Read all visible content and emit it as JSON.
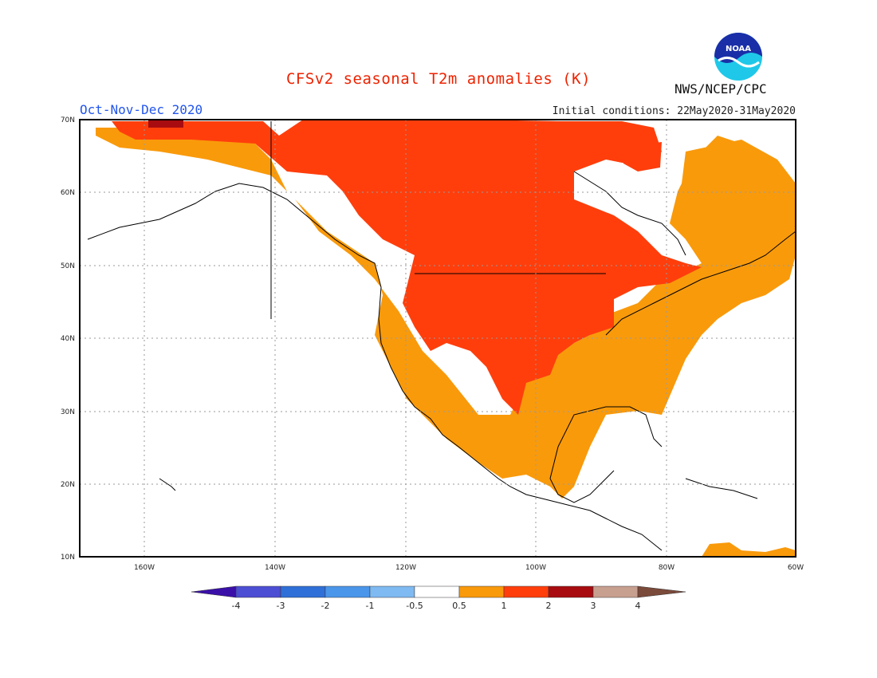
{
  "header": {
    "title": "CFSv2 seasonal T2m anomalies (K)",
    "season": "Oct-Nov-Dec 2020",
    "initial_conditions": "Initial conditions: 22May2020-31May2020",
    "agency": "NWS/NCEP/CPC",
    "logo_text": "NOAA"
  },
  "map": {
    "lat_labels": [
      "70N",
      "60N",
      "50N",
      "40N",
      "30N",
      "20N",
      "10N"
    ],
    "lon_labels": [
      "160W",
      "140W",
      "120W",
      "100W",
      "80W",
      "60W"
    ],
    "lat_range": [
      10,
      70
    ],
    "lon_range": [
      -170,
      -60
    ],
    "grid": "dotted"
  },
  "colorbar": {
    "labels": [
      "-4",
      "-3",
      "-2",
      "-1",
      "-0.5",
      "0.5",
      "1",
      "2",
      "3",
      "4"
    ],
    "colors": [
      "#3a10a8",
      "#4c4ed4",
      "#2f6fd8",
      "#4a96ea",
      "#7fbaf2",
      "#ffffff",
      "#f99a0b",
      "#ff3e0c",
      "#a80c10",
      "#c8a090",
      "#7a4a3a"
    ]
  },
  "legend_colors": {
    "near_normal": "#ffffff",
    "0.5_to_1": "#f99a0b",
    "1_to_2": "#ff3e0c",
    "2_to_3": "#a80c10"
  }
}
